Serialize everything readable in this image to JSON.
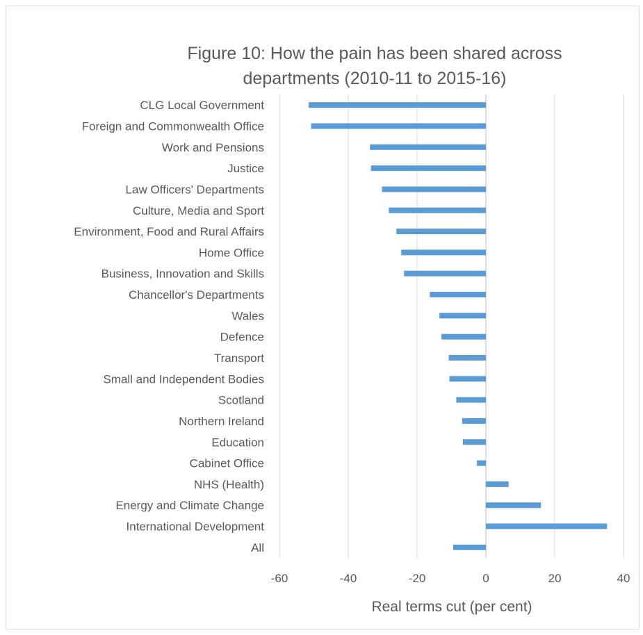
{
  "chart_data": {
    "type": "bar",
    "orientation": "horizontal",
    "title_lines": [
      "Figure 10: How the pain has been shared across",
      "departments (2010-11 to 2015-16)"
    ],
    "xlabel": "Real terms cut (per cent)",
    "ylabel": "",
    "xlim": [
      -60,
      40
    ],
    "xticks": [
      -60,
      -40,
      -20,
      0,
      20,
      40
    ],
    "grid": true,
    "legend": "none",
    "bar_color": "#5b9bd5",
    "categories": [
      "CLG Local Government",
      "Foreign and Commonwealth Office",
      "Work and Pensions",
      "Justice",
      "Law Officers' Departments",
      "Culture, Media and Sport",
      "Environment, Food and Rural Affairs",
      "Home Office",
      "Business, Innovation and Skills",
      "Chancellor's Departments",
      "Wales",
      "Defence",
      "Transport",
      "Small and Independent Bodies",
      "Scotland",
      "Northern Ireland",
      "Education",
      "Cabinet Office",
      "NHS (Health)",
      "Energy and Climate Change",
      "International Development",
      "All"
    ],
    "values": [
      -51.5,
      -50.8,
      -33.7,
      -33.4,
      -30.2,
      -28.2,
      -26.0,
      -24.6,
      -23.8,
      -16.3,
      -13.5,
      -12.9,
      -10.8,
      -10.6,
      -8.6,
      -6.9,
      -6.7,
      -2.6,
      6.6,
      16.0,
      35.2,
      -9.5
    ]
  }
}
